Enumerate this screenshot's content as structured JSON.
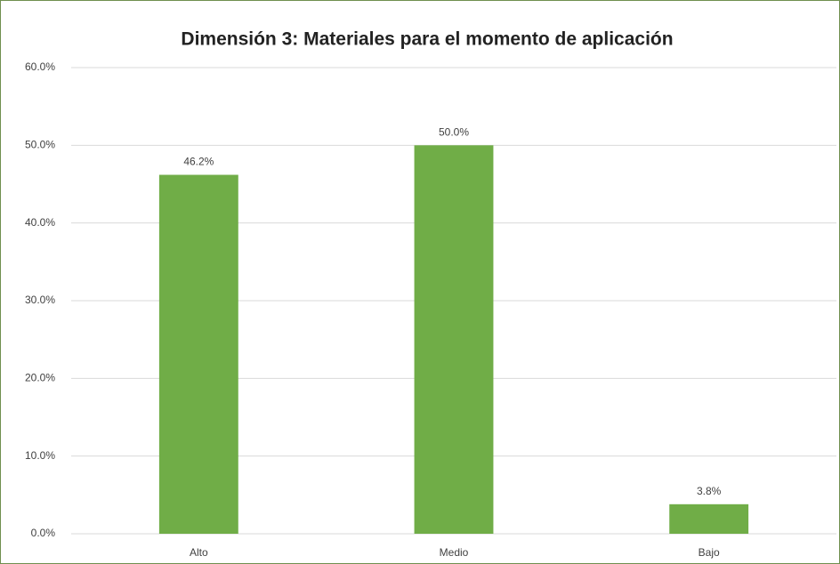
{
  "chart_data": {
    "type": "bar",
    "title": "Dimensión 3: Materiales para el momento de aplicación",
    "categories": [
      "Alto",
      "Medio",
      "Bajo"
    ],
    "values": [
      46.2,
      50.0,
      3.8
    ],
    "value_labels": [
      "46.2%",
      "50.0%",
      "3.8%"
    ],
    "color": "#70ad47",
    "ylim": [
      0,
      60
    ],
    "yticks": [
      {
        "value": 0,
        "label": "0.0%"
      },
      {
        "value": 10,
        "label": "10.0%"
      },
      {
        "value": 20,
        "label": "20.0%"
      },
      {
        "value": 30,
        "label": "30.0%"
      },
      {
        "value": 40,
        "label": "40.0%"
      },
      {
        "value": 50,
        "label": "50.0%"
      },
      {
        "value": 60,
        "label": "60.0%"
      }
    ],
    "grid": true
  }
}
